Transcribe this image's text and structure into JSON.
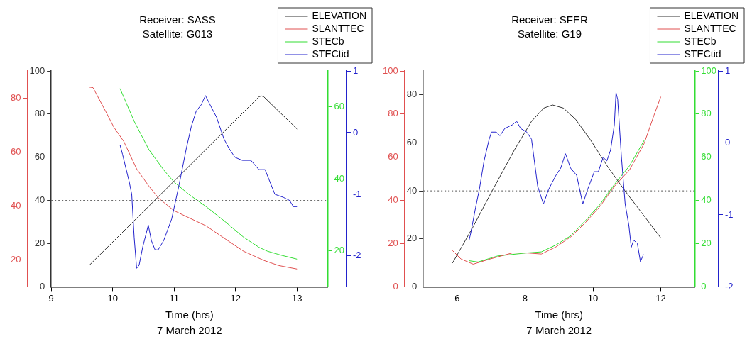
{
  "chart_data": [
    {
      "type": "line",
      "title": "Receiver: SASS",
      "subtitle": "Satellite: G013",
      "xlabel": "Time (hrs)",
      "annotations": [
        "7 March 2012"
      ],
      "legend": "top right",
      "xlim": [
        9,
        13.5
      ],
      "xticks": [
        9,
        10,
        11,
        12,
        13
      ],
      "ylim": [
        0,
        100
      ],
      "yticks": [
        0,
        20,
        40,
        60,
        80,
        100
      ],
      "y2lim": [
        10,
        90
      ],
      "y2ticks": [
        20,
        40,
        60,
        80
      ],
      "y3lim": [
        10,
        70
      ],
      "y3ticks": [
        20,
        40,
        60
      ],
      "ref_lines": [
        {
          "axis": "y",
          "value": 40,
          "color": "#555555",
          "line_style": "dotted"
        }
      ],
      "series": [
        {
          "name": "ELEVATION",
          "color": "#333333",
          "x": [
            9.62,
            12.38,
            12.42,
            12.46,
            13
          ],
          "values": [
            10,
            88,
            88.4,
            88,
            73.1
          ]
        },
        {
          "name": "SLANTTEC",
          "color": "#e05050",
          "axis": "y2",
          "x": [
            9.62,
            9.68,
            9.9,
            10.02,
            10.18,
            10.39,
            10.59,
            10.75,
            11.0,
            11.24,
            11.52,
            11.81,
            12.13,
            12.46,
            12.7,
            13.0
          ],
          "values": [
            84,
            83.8,
            74.4,
            69.1,
            63.9,
            53.7,
            47.3,
            42.8,
            38.2,
            35.6,
            32.6,
            28.1,
            23.2,
            19.8,
            17.9,
            16.6
          ]
        },
        {
          "name": "STECb",
          "color": "#33dd33",
          "axis": "y3",
          "x": [
            10.12,
            10.35,
            10.59,
            10.83,
            11.0,
            11.24,
            11.52,
            11.81,
            12.13,
            12.38,
            12.52,
            12.74,
            13.0
          ],
          "values": [
            65.1,
            56,
            48.1,
            42.5,
            39.1,
            35.7,
            32.3,
            28.4,
            23.8,
            21,
            19.9,
            18.8,
            17.7
          ]
        }
      ]
    },
    {
      "type": "line",
      "legend": "top right",
      "tick_labels": "y",
      "xlim": [
        9,
        13.5
      ],
      "ylim": [
        -2.5,
        1
      ],
      "yticks": [
        -2,
        -1,
        0,
        1
      ],
      "series": [
        {
          "name": "STECtid",
          "color": "#2222cc",
          "x": [
            10.12,
            10.16,
            10.27,
            10.31,
            10.35,
            10.39,
            10.43,
            10.49,
            10.58,
            10.63,
            10.69,
            10.74,
            10.83,
            10.96,
            11.08,
            11.2,
            11.28,
            11.36,
            11.44,
            11.51,
            11.56,
            11.69,
            11.81,
            11.89,
            11.99,
            12.11,
            12.17,
            12.25,
            12.38,
            12.48,
            12.54,
            12.64,
            12.78,
            12.88,
            12.94,
            13.0
          ],
          "values": [
            -0.2,
            -0.35,
            -0.8,
            -1.0,
            -1.7,
            -2.2,
            -2.15,
            -1.85,
            -1.5,
            -1.75,
            -1.9,
            -1.9,
            -1.75,
            -1.4,
            -0.85,
            -0.25,
            0.1,
            0.35,
            0.45,
            0.6,
            0.5,
            0.25,
            -0.1,
            -0.25,
            -0.4,
            -0.45,
            -0.45,
            -0.45,
            -0.6,
            -0.6,
            -0.75,
            -1.0,
            -1.05,
            -1.1,
            -1.2,
            -1.2
          ]
        }
      ]
    },
    {
      "type": "line",
      "title": "Receiver: SFER",
      "subtitle": "Satellite: G19",
      "xlabel": "Time (hrs)",
      "annotations": [
        "7 March 2012"
      ],
      "legend": "top right",
      "xlim": [
        5,
        13
      ],
      "xticks": [
        6,
        8,
        10,
        12
      ],
      "ylim": [
        0,
        90
      ],
      "yticks": [
        0,
        20,
        40,
        60,
        80
      ],
      "y2lim": [
        0,
        100
      ],
      "y2ticks": [
        0,
        20,
        40,
        60,
        80,
        100
      ],
      "y3lim": [
        0,
        100
      ],
      "y3ticks": [
        0,
        20,
        40,
        60,
        80,
        100
      ],
      "ref_lines": [
        {
          "axis": "y",
          "value": 40,
          "color": "#555555",
          "line_style": "dotted"
        }
      ],
      "series": [
        {
          "name": "ELEVATION",
          "color": "#333333",
          "x": [
            5.86,
            6.47,
            7.04,
            7.69,
            8.19,
            8.55,
            8.81,
            9.13,
            9.49,
            9.92,
            10.42,
            10.93,
            11.43,
            12.0
          ],
          "values": [
            9.9,
            25.1,
            40.3,
            57.2,
            69,
            74.5,
            75.8,
            74.5,
            69.8,
            61.4,
            50.4,
            40.3,
            31,
            20.4
          ]
        },
        {
          "name": "SLANTTEC",
          "color": "#e05050",
          "axis": "y2",
          "x": [
            5.86,
            6.11,
            6.47,
            6.97,
            7.62,
            8.05,
            8.48,
            8.91,
            9.35,
            9.78,
            10.21,
            10.64,
            11.08,
            11.51,
            11.8,
            12.0
          ],
          "values": [
            16.8,
            12.9,
            10.5,
            12.9,
            15.7,
            15.7,
            15.2,
            18.5,
            23.2,
            29.8,
            37.3,
            46.7,
            54.2,
            66.4,
            79.5,
            88
          ]
        },
        {
          "name": "STECb",
          "color": "#33dd33",
          "axis": "y3",
          "x": [
            6.35,
            6.61,
            7.19,
            8.05,
            8.48,
            8.91,
            9.35,
            9.78,
            10.21,
            10.64,
            11.08,
            11.51
          ],
          "values": [
            12.1,
            11.5,
            14.3,
            15.7,
            16.2,
            19.4,
            23.7,
            30.7,
            38.2,
            47.6,
            56.1,
            67.8
          ]
        }
      ]
    },
    {
      "type": "line",
      "legend": "top right",
      "tick_labels": "y",
      "xlim": [
        5,
        13
      ],
      "ylim": [
        -2,
        1
      ],
      "yticks": [
        -2,
        -1,
        0,
        1
      ],
      "series": [
        {
          "name": "STECtid",
          "color": "#2222cc",
          "x": [
            6.35,
            6.4,
            6.54,
            6.65,
            6.79,
            6.94,
            7.01,
            7.15,
            7.26,
            7.4,
            7.62,
            7.75,
            7.87,
            8.05,
            8.19,
            8.37,
            8.54,
            8.69,
            8.91,
            9.05,
            9.19,
            9.34,
            9.52,
            9.7,
            9.84,
            10.04,
            10.16,
            10.3,
            10.41,
            10.52,
            10.63,
            10.68,
            10.73,
            10.84,
            10.95,
            11.06,
            11.13,
            11.2,
            11.31,
            11.4,
            11.49
          ],
          "values": [
            -1.35,
            -1.25,
            -0.9,
            -0.65,
            -0.25,
            0.05,
            0.15,
            0.15,
            0.1,
            0.2,
            0.25,
            0.3,
            0.2,
            0.15,
            0.05,
            -0.6,
            -0.85,
            -0.65,
            -0.45,
            -0.35,
            -0.15,
            -0.35,
            -0.45,
            -0.85,
            -0.65,
            -0.4,
            -0.4,
            -0.2,
            -0.25,
            -0.1,
            0.25,
            0.7,
            0.6,
            -0.2,
            -0.85,
            -1.15,
            -1.45,
            -1.35,
            -1.4,
            -1.65,
            -1.55
          ]
        }
      ]
    }
  ]
}
